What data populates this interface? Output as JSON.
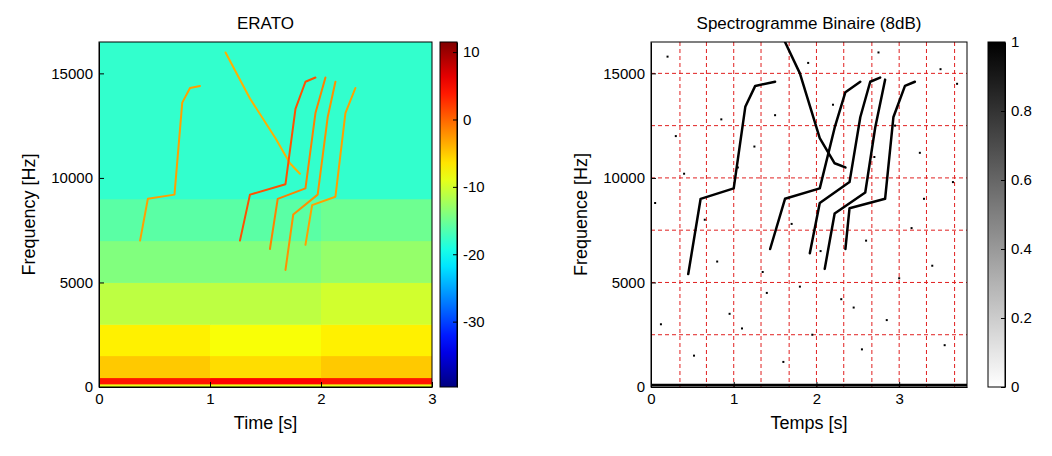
{
  "chart_data": [
    {
      "type": "heatmap",
      "title": "ERATO",
      "xlabel": "Time [s]",
      "ylabel": "Frequency [Hz]",
      "xlim": [
        0,
        3
      ],
      "ylim": [
        0,
        16500
      ],
      "xticks": [
        0,
        1,
        2,
        3
      ],
      "yticks": [
        0,
        5000,
        10000,
        15000
      ],
      "color": "jet",
      "x_edges": [
        0,
        1,
        2,
        3
      ],
      "y_edges": [
        0,
        150,
        450,
        1500,
        3000,
        5000,
        7000,
        9000,
        16500
      ],
      "cells": [
        [
          -9,
          -9,
          -9
        ],
        [
          4,
          5,
          4
        ],
        [
          -5,
          -6,
          -5
        ],
        [
          -7,
          -8,
          -7
        ],
        [
          -11,
          -11,
          -10
        ],
        [
          -14,
          -14,
          -13
        ],
        [
          -16,
          -16,
          -15
        ],
        [
          -18,
          -18,
          -18
        ]
      ],
      "colorbar": {
        "lim": [
          -39.7,
          11.5
        ],
        "ticks": [
          -30,
          -20,
          -10,
          0,
          10
        ]
      },
      "series": [
        {
          "color": "#ffa000",
          "x": [
            0.37,
            0.44,
            0.68,
            0.75,
            0.82,
            0.91
          ],
          "values": [
            7000,
            9000,
            9200,
            13600,
            14300,
            14400
          ]
        },
        {
          "color": "#ffb000",
          "x": [
            1.14,
            1.36,
            1.59,
            1.72,
            1.81
          ],
          "values": [
            16000,
            13800,
            11900,
            10700,
            10200
          ]
        },
        {
          "color": "#ff5000",
          "x": [
            1.27,
            1.36,
            1.68,
            1.77,
            1.86,
            1.95
          ],
          "values": [
            7000,
            9200,
            9700,
            13300,
            14600,
            14800
          ]
        },
        {
          "color": "#ff8000",
          "x": [
            1.54,
            1.61,
            1.86,
            1.95,
            2.04
          ],
          "values": [
            6600,
            9000,
            9500,
            13100,
            14800
          ]
        },
        {
          "color": "#ff9000",
          "x": [
            1.68,
            1.75,
            1.97,
            2.06,
            2.13
          ],
          "values": [
            5600,
            8250,
            9200,
            12900,
            14600
          ]
        },
        {
          "color": "#ffa000",
          "x": [
            1.86,
            1.92,
            2.13,
            2.22,
            2.31
          ],
          "values": [
            6800,
            8700,
            9100,
            13100,
            14300
          ]
        }
      ]
    },
    {
      "type": "line",
      "title": "Spectrogramme Binaire (8dB)",
      "xlabel": "Temps [s]",
      "ylabel": "Frequence [Hz]",
      "xlim": [
        0,
        3.82
      ],
      "ylim": [
        0,
        16500
      ],
      "xticks": [
        0,
        1,
        2,
        3
      ],
      "yticks": [
        0,
        5000,
        10000,
        15000
      ],
      "grid": true,
      "grid_x": [
        0.35,
        0.67,
        1.0,
        1.33,
        1.67,
        2.0,
        2.33,
        2.67,
        3.0,
        3.33,
        3.67
      ],
      "grid_y": [
        2500,
        5000,
        7500,
        10000,
        12500,
        15000
      ],
      "color": "gray",
      "colorbar": {
        "lim": [
          0,
          1
        ],
        "ticks": [
          0,
          0.2,
          0.4,
          0.6,
          0.8,
          1
        ]
      },
      "series": [
        {
          "color": "#000000",
          "x": [
            0.45,
            0.6,
            1.0,
            1.14,
            1.26,
            1.5
          ],
          "values": [
            5400,
            9000,
            9500,
            13400,
            14400,
            14600
          ]
        },
        {
          "color": "#000000",
          "x": [
            1.62,
            1.8,
            2.04,
            2.22,
            2.35
          ],
          "values": [
            16500,
            15000,
            11900,
            10700,
            10500
          ]
        },
        {
          "color": "#000000",
          "x": [
            1.44,
            1.62,
            2.04,
            2.22,
            2.35,
            2.53
          ],
          "values": [
            6600,
            9000,
            9500,
            12400,
            14100,
            14600
          ]
        },
        {
          "color": "#000000",
          "x": [
            1.92,
            2.04,
            2.4,
            2.53,
            2.65,
            2.77
          ],
          "values": [
            6400,
            8800,
            9800,
            12900,
            14600,
            14800
          ]
        },
        {
          "color": "#000000",
          "x": [
            2.1,
            2.22,
            2.59,
            2.71,
            2.83
          ],
          "values": [
            5650,
            8300,
            9300,
            12400,
            14700
          ]
        },
        {
          "color": "#000000",
          "x": [
            2.35,
            2.4,
            2.83,
            2.93,
            3.07,
            3.19
          ],
          "values": [
            6600,
            8550,
            9000,
            12900,
            14400,
            14600
          ]
        },
        {
          "color": "#000000",
          "x": [
            0,
            3.82
          ],
          "values": [
            100,
            100
          ]
        }
      ],
      "points": {
        "x": [
          0.12,
          0.3,
          0.52,
          0.8,
          1.05,
          1.4,
          1.7,
          1.95,
          2.2,
          2.45,
          2.7,
          3.0,
          3.3,
          3.55,
          3.7,
          0.2,
          0.65,
          0.95,
          1.25,
          1.6,
          1.9,
          2.3,
          2.6,
          2.95,
          3.4,
          3.65,
          0.4,
          1.1,
          1.5,
          2.05,
          2.55,
          3.15,
          3.5,
          0.85,
          1.8,
          2.85,
          3.25,
          0.05,
          1.35,
          2.75
        ],
        "y": [
          3000,
          12000,
          1500,
          6000,
          10500,
          4500,
          7800,
          2500,
          13500,
          3800,
          11000,
          5200,
          9000,
          2000,
          14500,
          15800,
          8000,
          3500,
          11500,
          1200,
          15500,
          4200,
          7000,
          12500,
          5800,
          9800,
          10200,
          2800,
          13000,
          6500,
          1800,
          7600,
          15200,
          12800,
          4800,
          3200,
          11200,
          8800,
          5500,
          16000
        ]
      }
    }
  ]
}
